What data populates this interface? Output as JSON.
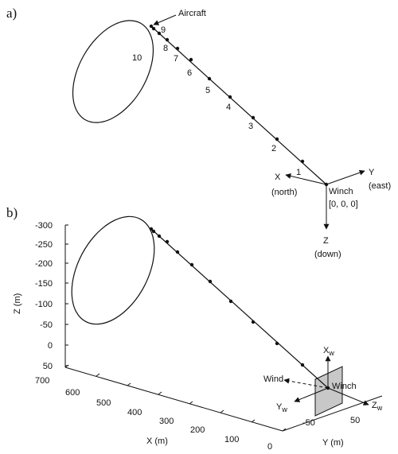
{
  "panel_a": {
    "label": "a)",
    "aircraft_label": "Aircraft",
    "point_labels": [
      "1",
      "2",
      "3",
      "4",
      "5",
      "6",
      "7",
      "8",
      "9",
      "10"
    ],
    "axes": {
      "x": {
        "name": "X",
        "dir": "(north)"
      },
      "y": {
        "name": "Y",
        "dir": "(east)"
      },
      "z": {
        "name": "Z",
        "dir": "(down)"
      }
    },
    "winch": {
      "name": "Winch",
      "coords": "[0, 0, 0]"
    }
  },
  "panel_b": {
    "label": "b)",
    "z_axis": {
      "label": "Z (m)",
      "ticks": [
        "-300",
        "-250",
        "-200",
        "-150",
        "-100",
        "-50",
        "0",
        "50"
      ]
    },
    "x_axis": {
      "label": "X (m)",
      "ticks": [
        "700",
        "600",
        "500",
        "400",
        "300",
        "200",
        "100",
        "0"
      ]
    },
    "y_axis": {
      "label": "Y (m)",
      "ticks": [
        "-50",
        "50"
      ]
    },
    "wind_label": "Wind",
    "winch_label": "Winch",
    "wind_frame": {
      "x": {
        "main": "X",
        "sub": "w"
      },
      "y": {
        "main": "Y",
        "sub": "w"
      },
      "z": {
        "main": "Z",
        "sub": "w"
      }
    },
    "colors": {
      "wind_plane": "#c8c8c8"
    }
  }
}
